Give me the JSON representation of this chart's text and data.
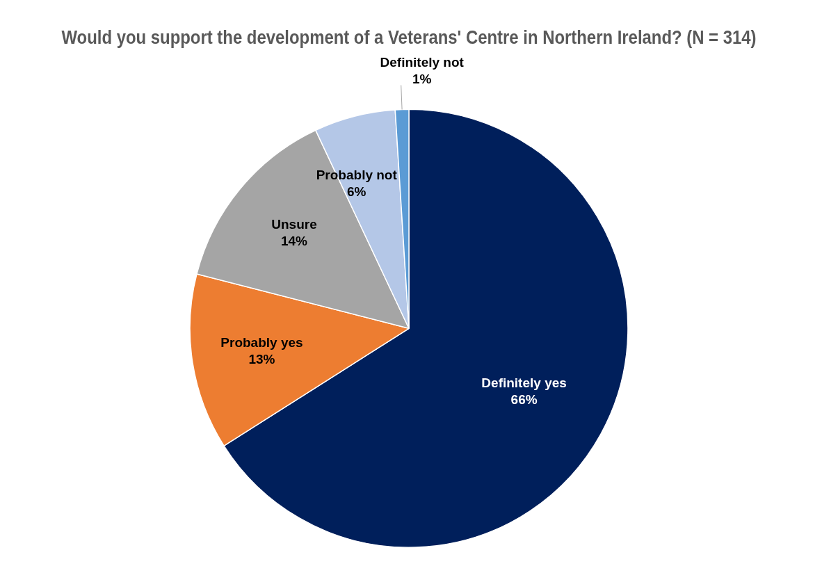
{
  "chart_data": {
    "type": "pie",
    "title": "Would you support the development of a Veterans' Centre in Northern Ireland? (N = 314)",
    "categories": [
      "Definitely yes",
      "Probably yes",
      "Unsure",
      "Probably not",
      "Definitely not"
    ],
    "values": [
      66,
      13,
      14,
      6,
      1
    ],
    "value_labels": [
      "66%",
      "13%",
      "14%",
      "6%",
      "1%"
    ],
    "colors": [
      "#001f5b",
      "#ed7d31",
      "#a5a5a5",
      "#b4c7e7",
      "#5b9bd5"
    ],
    "legend": false
  }
}
